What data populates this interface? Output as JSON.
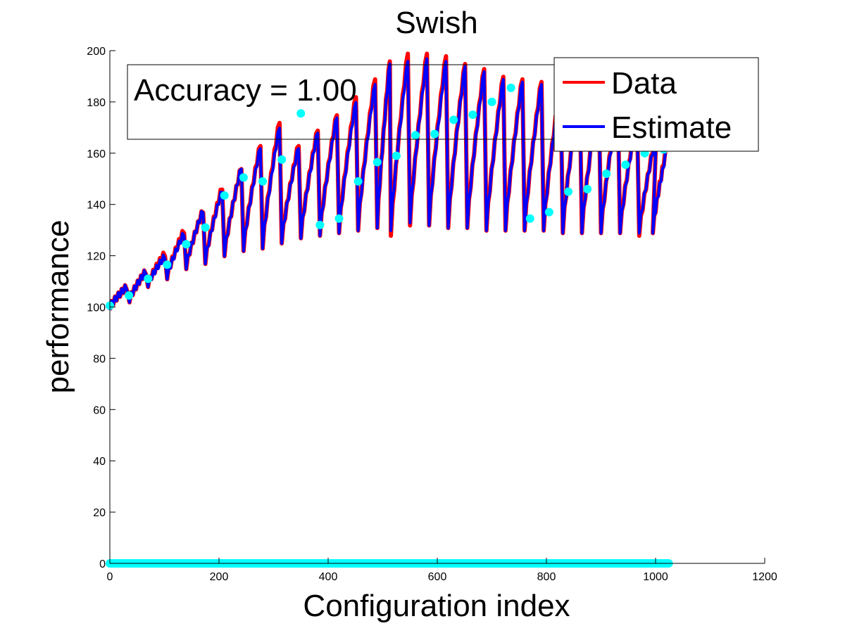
{
  "chart_data": {
    "type": "line",
    "title": "Swish",
    "xlabel": "Configuration index",
    "ylabel": "performance",
    "xlim": [
      0,
      1200
    ],
    "ylim": [
      0,
      200
    ],
    "xticks": [
      0,
      200,
      400,
      600,
      800,
      1000,
      1200
    ],
    "yticks": [
      0,
      20,
      40,
      60,
      80,
      100,
      120,
      140,
      160,
      180,
      200
    ],
    "grid": false,
    "legend": {
      "position": "top-right",
      "entries": [
        {
          "name": "Data",
          "color": "#ff0000"
        },
        {
          "name": "Estimate",
          "color": "#0000ff"
        }
      ]
    },
    "annotation": "Accuracy = 1.00",
    "series": [
      {
        "name": "Data",
        "color": "#ff0000",
        "note": "sawtooth curve (each segment ramps from its low to its peak)",
        "segments": [
          {
            "x0": 0,
            "x1": 31,
            "low": 100,
            "high": 108
          },
          {
            "x0": 36,
            "x1": 66,
            "low": 103,
            "high": 114
          },
          {
            "x0": 70,
            "x1": 101,
            "low": 109,
            "high": 121
          },
          {
            "x0": 105,
            "x1": 136,
            "low": 112,
            "high": 130
          },
          {
            "x0": 140,
            "x1": 171,
            "low": 116,
            "high": 138
          },
          {
            "x0": 175,
            "x1": 206,
            "low": 118,
            "high": 147
          },
          {
            "x0": 210,
            "x1": 241,
            "low": 121,
            "high": 155
          },
          {
            "x0": 245,
            "x1": 276,
            "low": 123,
            "high": 164
          },
          {
            "x0": 280,
            "x1": 311,
            "low": 124,
            "high": 173
          },
          {
            "x0": 315,
            "x1": 346,
            "low": 126,
            "high": 164
          },
          {
            "x0": 350,
            "x1": 381,
            "low": 128,
            "high": 170
          },
          {
            "x0": 385,
            "x1": 416,
            "low": 129,
            "high": 176
          },
          {
            "x0": 420,
            "x1": 451,
            "low": 130,
            "high": 183
          },
          {
            "x0": 455,
            "x1": 486,
            "low": 131,
            "high": 190
          },
          {
            "x0": 490,
            "x1": 513,
            "low": 132,
            "high": 197
          },
          {
            "x0": 515,
            "x1": 546,
            "low": 129,
            "high": 200
          },
          {
            "x0": 550,
            "x1": 581,
            "low": 133,
            "high": 200
          },
          {
            "x0": 585,
            "x1": 616,
            "low": 133,
            "high": 199
          },
          {
            "x0": 620,
            "x1": 651,
            "low": 132,
            "high": 196
          },
          {
            "x0": 655,
            "x1": 686,
            "low": 132,
            "high": 194
          },
          {
            "x0": 690,
            "x1": 721,
            "low": 131,
            "high": 191
          },
          {
            "x0": 725,
            "x1": 756,
            "low": 131,
            "high": 190
          },
          {
            "x0": 760,
            "x1": 791,
            "low": 131,
            "high": 189
          },
          {
            "x0": 795,
            "x1": 826,
            "low": 131,
            "high": 188
          },
          {
            "x0": 830,
            "x1": 861,
            "low": 130,
            "high": 186
          },
          {
            "x0": 865,
            "x1": 896,
            "low": 130,
            "high": 184
          },
          {
            "x0": 900,
            "x1": 931,
            "low": 130,
            "high": 180
          },
          {
            "x0": 935,
            "x1": 966,
            "low": 130,
            "high": 175
          },
          {
            "x0": 970,
            "x1": 1001,
            "low": 129,
            "high": 168
          },
          {
            "x0": 995,
            "x1": 1020,
            "low": 130,
            "high": 162
          }
        ]
      },
      {
        "name": "Estimate",
        "color": "#0000ff",
        "note": "sawtooth curve (each segment ramps from its low to its peak)",
        "segments": [
          {
            "x0": 0,
            "x1": 31,
            "low": 100,
            "high": 108
          },
          {
            "x0": 36,
            "x1": 66,
            "low": 103,
            "high": 114
          },
          {
            "x0": 70,
            "x1": 101,
            "low": 109,
            "high": 120
          },
          {
            "x0": 105,
            "x1": 136,
            "low": 112,
            "high": 129
          },
          {
            "x0": 140,
            "x1": 171,
            "low": 116,
            "high": 138
          },
          {
            "x0": 175,
            "x1": 206,
            "low": 118,
            "high": 146
          },
          {
            "x0": 210,
            "x1": 241,
            "low": 121,
            "high": 155
          },
          {
            "x0": 245,
            "x1": 276,
            "low": 123,
            "high": 163
          },
          {
            "x0": 280,
            "x1": 311,
            "low": 124,
            "high": 171
          },
          {
            "x0": 315,
            "x1": 346,
            "low": 126,
            "high": 163
          },
          {
            "x0": 350,
            "x1": 381,
            "low": 128,
            "high": 169
          },
          {
            "x0": 385,
            "x1": 416,
            "low": 129,
            "high": 175
          },
          {
            "x0": 420,
            "x1": 451,
            "low": 130,
            "high": 181
          },
          {
            "x0": 455,
            "x1": 486,
            "low": 131,
            "high": 188
          },
          {
            "x0": 490,
            "x1": 513,
            "low": 132,
            "high": 196
          },
          {
            "x0": 515,
            "x1": 546,
            "low": 131,
            "high": 197
          },
          {
            "x0": 550,
            "x1": 581,
            "low": 134,
            "high": 198
          },
          {
            "x0": 585,
            "x1": 616,
            "low": 133,
            "high": 197
          },
          {
            "x0": 620,
            "x1": 651,
            "low": 132,
            "high": 195
          },
          {
            "x0": 655,
            "x1": 686,
            "low": 132,
            "high": 193
          },
          {
            "x0": 690,
            "x1": 721,
            "low": 131,
            "high": 190
          },
          {
            "x0": 725,
            "x1": 756,
            "low": 131,
            "high": 189
          },
          {
            "x0": 760,
            "x1": 791,
            "low": 131,
            "high": 188
          },
          {
            "x0": 795,
            "x1": 826,
            "low": 131,
            "high": 187
          },
          {
            "x0": 830,
            "x1": 861,
            "low": 130,
            "high": 185
          },
          {
            "x0": 865,
            "x1": 896,
            "low": 130,
            "high": 183
          },
          {
            "x0": 900,
            "x1": 931,
            "low": 130,
            "high": 179
          },
          {
            "x0": 935,
            "x1": 966,
            "low": 130,
            "high": 174
          },
          {
            "x0": 970,
            "x1": 1001,
            "low": 130,
            "high": 167
          },
          {
            "x0": 995,
            "x1": 1020,
            "low": 130,
            "high": 161
          }
        ]
      },
      {
        "name": "",
        "type": "scatter",
        "color": "#00ffff",
        "points": [
          {
            "x": 0,
            "y": 100.5
          },
          {
            "x": 35,
            "y": 104.5
          },
          {
            "x": 70,
            "y": 111
          },
          {
            "x": 105,
            "y": 116.5
          },
          {
            "x": 140,
            "y": 124.5
          },
          {
            "x": 175,
            "y": 131
          },
          {
            "x": 210,
            "y": 143.5
          },
          {
            "x": 245,
            "y": 150.5
          },
          {
            "x": 280,
            "y": 149
          },
          {
            "x": 315,
            "y": 157.5
          },
          {
            "x": 350,
            "y": 175.5
          },
          {
            "x": 385,
            "y": 132
          },
          {
            "x": 420,
            "y": 134.5
          },
          {
            "x": 455,
            "y": 149
          },
          {
            "x": 490,
            "y": 156.5
          },
          {
            "x": 525,
            "y": 159
          },
          {
            "x": 560,
            "y": 167
          },
          {
            "x": 595,
            "y": 167.5
          },
          {
            "x": 630,
            "y": 173
          },
          {
            "x": 665,
            "y": 175
          },
          {
            "x": 700,
            "y": 180
          },
          {
            "x": 735,
            "y": 185.5
          },
          {
            "x": 770,
            "y": 134.5
          },
          {
            "x": 805,
            "y": 137
          },
          {
            "x": 840,
            "y": 145
          },
          {
            "x": 875,
            "y": 146
          },
          {
            "x": 910,
            "y": 152
          },
          {
            "x": 945,
            "y": 155.5
          },
          {
            "x": 980,
            "y": 160
          },
          {
            "x": 1015,
            "y": 161.5
          }
        ],
        "baseline": {
          "y": 0,
          "x_from": 0,
          "x_to": 1024
        }
      }
    ]
  }
}
